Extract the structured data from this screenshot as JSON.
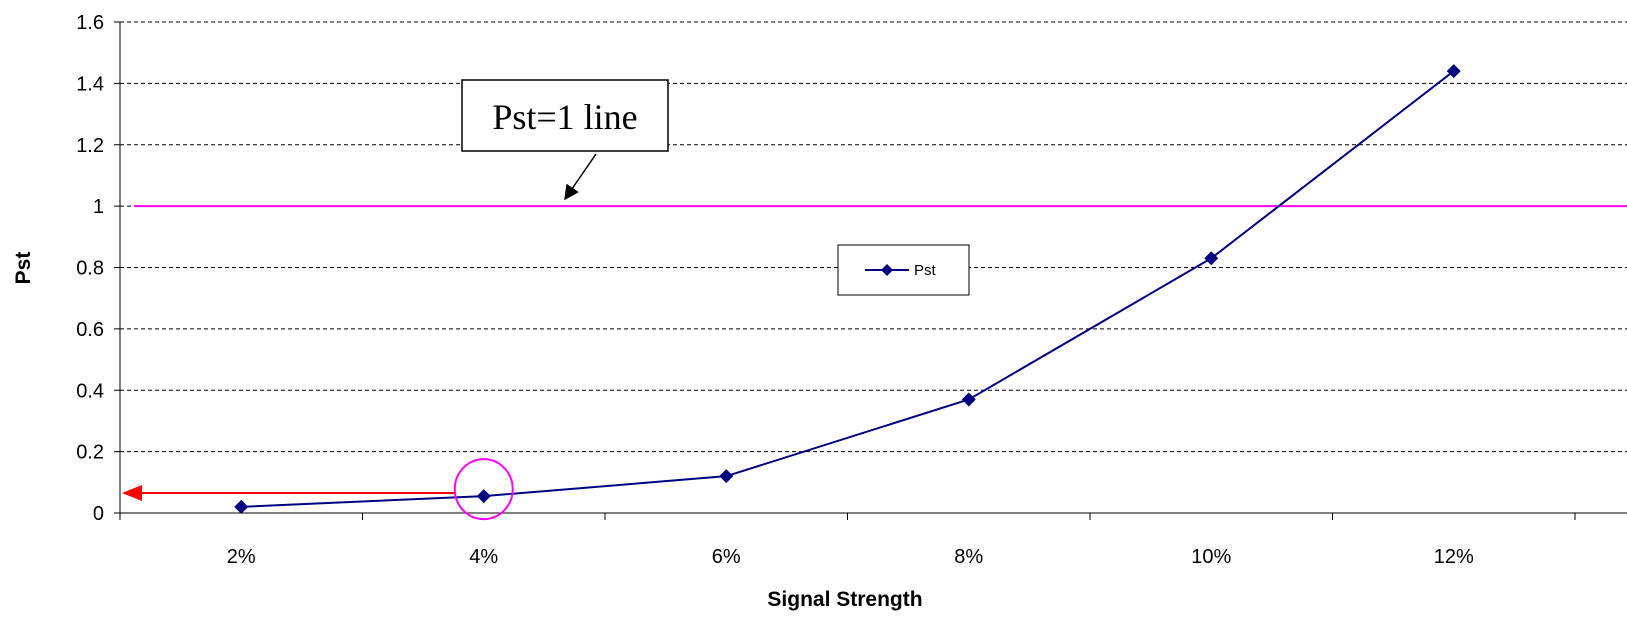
{
  "chart_data": {
    "type": "line",
    "title": "",
    "xlabel": "Signal Strength",
    "ylabel": "Pst",
    "categories": [
      "2%",
      "4%",
      "6%",
      "8%",
      "10%",
      "12%"
    ],
    "series": [
      {
        "name": "Pst",
        "color": "#000080",
        "marker": "diamond",
        "values": [
          0.02,
          0.055,
          0.12,
          0.37,
          0.83,
          1.44
        ]
      }
    ],
    "ylim": [
      0,
      1.6
    ],
    "yticks": [
      "0",
      "0.2",
      "0.4",
      "0.6",
      "0.8",
      "1",
      "1.2",
      "1.4",
      "1.6"
    ],
    "grid": "horizontal-dashed",
    "legend_position": "center",
    "reference_line": {
      "value": 1,
      "color": "#ff00ff"
    },
    "annotations": {
      "callout_text": "Pst=1 line",
      "highlight_category": "4%",
      "highlight_color": "#ff00ff",
      "arrow_color": "#ff0000",
      "arrow_value": 0.065
    }
  }
}
